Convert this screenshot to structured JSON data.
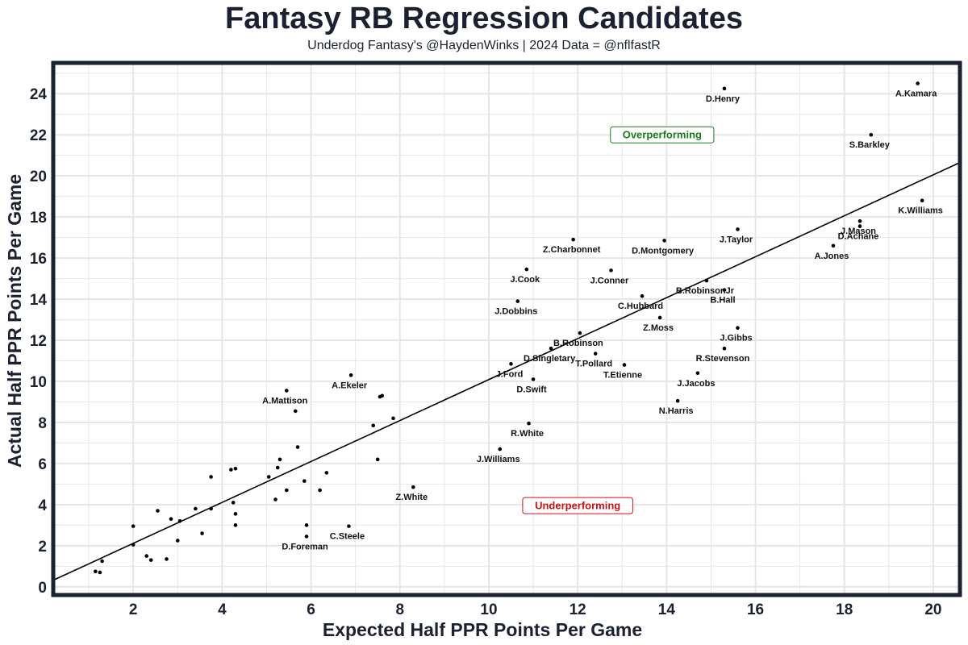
{
  "chart_data": {
    "type": "scatter",
    "title": "Fantasy RB Regression Candidates",
    "subtitle": "Underdog Fantasy's @HaydenWinks | 2024 Data = @nflfastR",
    "xlabel": "Expected Half PPR Points Per Game",
    "ylabel": "Actual Half PPR Points Per Game",
    "xlim": [
      0.2,
      20.6
    ],
    "ylim": [
      -0.4,
      25.5
    ],
    "xticks": [
      2,
      4,
      6,
      8,
      10,
      12,
      14,
      16,
      18,
      20
    ],
    "yticks": [
      0,
      2,
      4,
      6,
      8,
      10,
      12,
      14,
      16,
      18,
      20,
      22,
      24
    ],
    "grid": true,
    "trend_line": {
      "x": [
        0.2,
        20.6
      ],
      "y": [
        0.32,
        20.65
      ]
    },
    "annotations": [
      {
        "text": "Overperforming",
        "x": 13.9,
        "y": 22.0,
        "color": "#1a7a1a"
      },
      {
        "text": "Underperforming",
        "x": 12.0,
        "y": 3.95,
        "color": "#cc1111"
      }
    ],
    "points": [
      {
        "x": 15.3,
        "y": 24.25,
        "label": "D.Henry"
      },
      {
        "x": 19.65,
        "y": 24.5,
        "label": "A.Kamara"
      },
      {
        "x": 18.6,
        "y": 22.0,
        "label": "S.Barkley"
      },
      {
        "x": 19.75,
        "y": 18.8,
        "label": "K.Williams"
      },
      {
        "x": 18.35,
        "y": 17.8,
        "label": "J.Mason"
      },
      {
        "x": 18.35,
        "y": 17.55,
        "label": "D.Achane"
      },
      {
        "x": 17.75,
        "y": 16.6,
        "label": "A.Jones"
      },
      {
        "x": 15.6,
        "y": 17.4,
        "label": "J.Taylor"
      },
      {
        "x": 13.95,
        "y": 16.85,
        "label": "D.Montgomery"
      },
      {
        "x": 11.9,
        "y": 16.9,
        "label": "Z.Charbonnet"
      },
      {
        "x": 10.85,
        "y": 15.45,
        "label": "J.Cook"
      },
      {
        "x": 12.75,
        "y": 15.4,
        "label": "J.Conner"
      },
      {
        "x": 14.9,
        "y": 14.9,
        "label": "B.RobinsonJr"
      },
      {
        "x": 15.3,
        "y": 14.45,
        "label": "B.Hall"
      },
      {
        "x": 13.45,
        "y": 14.15,
        "label": "C.Hubbard"
      },
      {
        "x": 10.65,
        "y": 13.9,
        "label": "J.Dobbins"
      },
      {
        "x": 13.85,
        "y": 13.1,
        "label": "Z.Moss"
      },
      {
        "x": 15.6,
        "y": 12.6,
        "label": "J.Gibbs"
      },
      {
        "x": 12.05,
        "y": 12.35,
        "label": "B.Robinson"
      },
      {
        "x": 15.3,
        "y": 11.6,
        "label": "R.Stevenson"
      },
      {
        "x": 11.4,
        "y": 11.6,
        "label": "D.Singletary"
      },
      {
        "x": 12.4,
        "y": 11.35,
        "label": "T.Pollard"
      },
      {
        "x": 10.5,
        "y": 10.85,
        "label": "J.Ford"
      },
      {
        "x": 13.05,
        "y": 10.8,
        "label": "T.Etienne"
      },
      {
        "x": 14.7,
        "y": 10.4,
        "label": "J.Jacobs"
      },
      {
        "x": 11.0,
        "y": 10.1,
        "label": "D.Swift"
      },
      {
        "x": 14.25,
        "y": 9.05,
        "label": "N.Harris"
      },
      {
        "x": 6.9,
        "y": 10.3,
        "label": "A.Ekeler"
      },
      {
        "x": 5.45,
        "y": 9.55,
        "label": "A.Mattison"
      },
      {
        "x": 10.9,
        "y": 7.95,
        "label": "R.White"
      },
      {
        "x": 10.25,
        "y": 6.7,
        "label": "J.Williams"
      },
      {
        "x": 8.3,
        "y": 4.85,
        "label": "Z.White"
      },
      {
        "x": 6.85,
        "y": 2.95,
        "label": "C.Steele"
      },
      {
        "x": 5.9,
        "y": 2.45,
        "label": "D.Foreman"
      },
      {
        "x": 7.6,
        "y": 9.3,
        "label": ""
      },
      {
        "x": 7.55,
        "y": 9.25,
        "label": ""
      },
      {
        "x": 5.65,
        "y": 8.55,
        "label": ""
      },
      {
        "x": 7.85,
        "y": 8.2,
        "label": ""
      },
      {
        "x": 7.4,
        "y": 7.85,
        "label": ""
      },
      {
        "x": 5.7,
        "y": 6.8,
        "label": ""
      },
      {
        "x": 7.5,
        "y": 6.2,
        "label": ""
      },
      {
        "x": 5.3,
        "y": 6.2,
        "label": ""
      },
      {
        "x": 5.25,
        "y": 5.8,
        "label": ""
      },
      {
        "x": 4.3,
        "y": 5.75,
        "label": ""
      },
      {
        "x": 4.2,
        "y": 5.7,
        "label": ""
      },
      {
        "x": 6.35,
        "y": 5.55,
        "label": ""
      },
      {
        "x": 3.75,
        "y": 5.35,
        "label": ""
      },
      {
        "x": 5.05,
        "y": 5.35,
        "label": ""
      },
      {
        "x": 5.85,
        "y": 5.15,
        "label": ""
      },
      {
        "x": 5.45,
        "y": 4.7,
        "label": ""
      },
      {
        "x": 6.2,
        "y": 4.7,
        "label": ""
      },
      {
        "x": 5.2,
        "y": 4.25,
        "label": ""
      },
      {
        "x": 4.25,
        "y": 4.1,
        "label": ""
      },
      {
        "x": 3.4,
        "y": 3.8,
        "label": ""
      },
      {
        "x": 3.75,
        "y": 3.8,
        "label": ""
      },
      {
        "x": 2.55,
        "y": 3.7,
        "label": ""
      },
      {
        "x": 4.3,
        "y": 3.55,
        "label": ""
      },
      {
        "x": 2.85,
        "y": 3.3,
        "label": ""
      },
      {
        "x": 3.05,
        "y": 3.2,
        "label": ""
      },
      {
        "x": 4.3,
        "y": 3.0,
        "label": ""
      },
      {
        "x": 5.9,
        "y": 3.0,
        "label": ""
      },
      {
        "x": 2.0,
        "y": 2.95,
        "label": ""
      },
      {
        "x": 3.55,
        "y": 2.6,
        "label": ""
      },
      {
        "x": 3.0,
        "y": 2.25,
        "label": ""
      },
      {
        "x": 2.0,
        "y": 2.05,
        "label": ""
      },
      {
        "x": 2.3,
        "y": 1.5,
        "label": ""
      },
      {
        "x": 2.75,
        "y": 1.35,
        "label": ""
      },
      {
        "x": 2.4,
        "y": 1.3,
        "label": ""
      },
      {
        "x": 1.3,
        "y": 1.25,
        "label": ""
      },
      {
        "x": 1.15,
        "y": 0.75,
        "label": ""
      },
      {
        "x": 1.25,
        "y": 0.7,
        "label": ""
      }
    ]
  }
}
